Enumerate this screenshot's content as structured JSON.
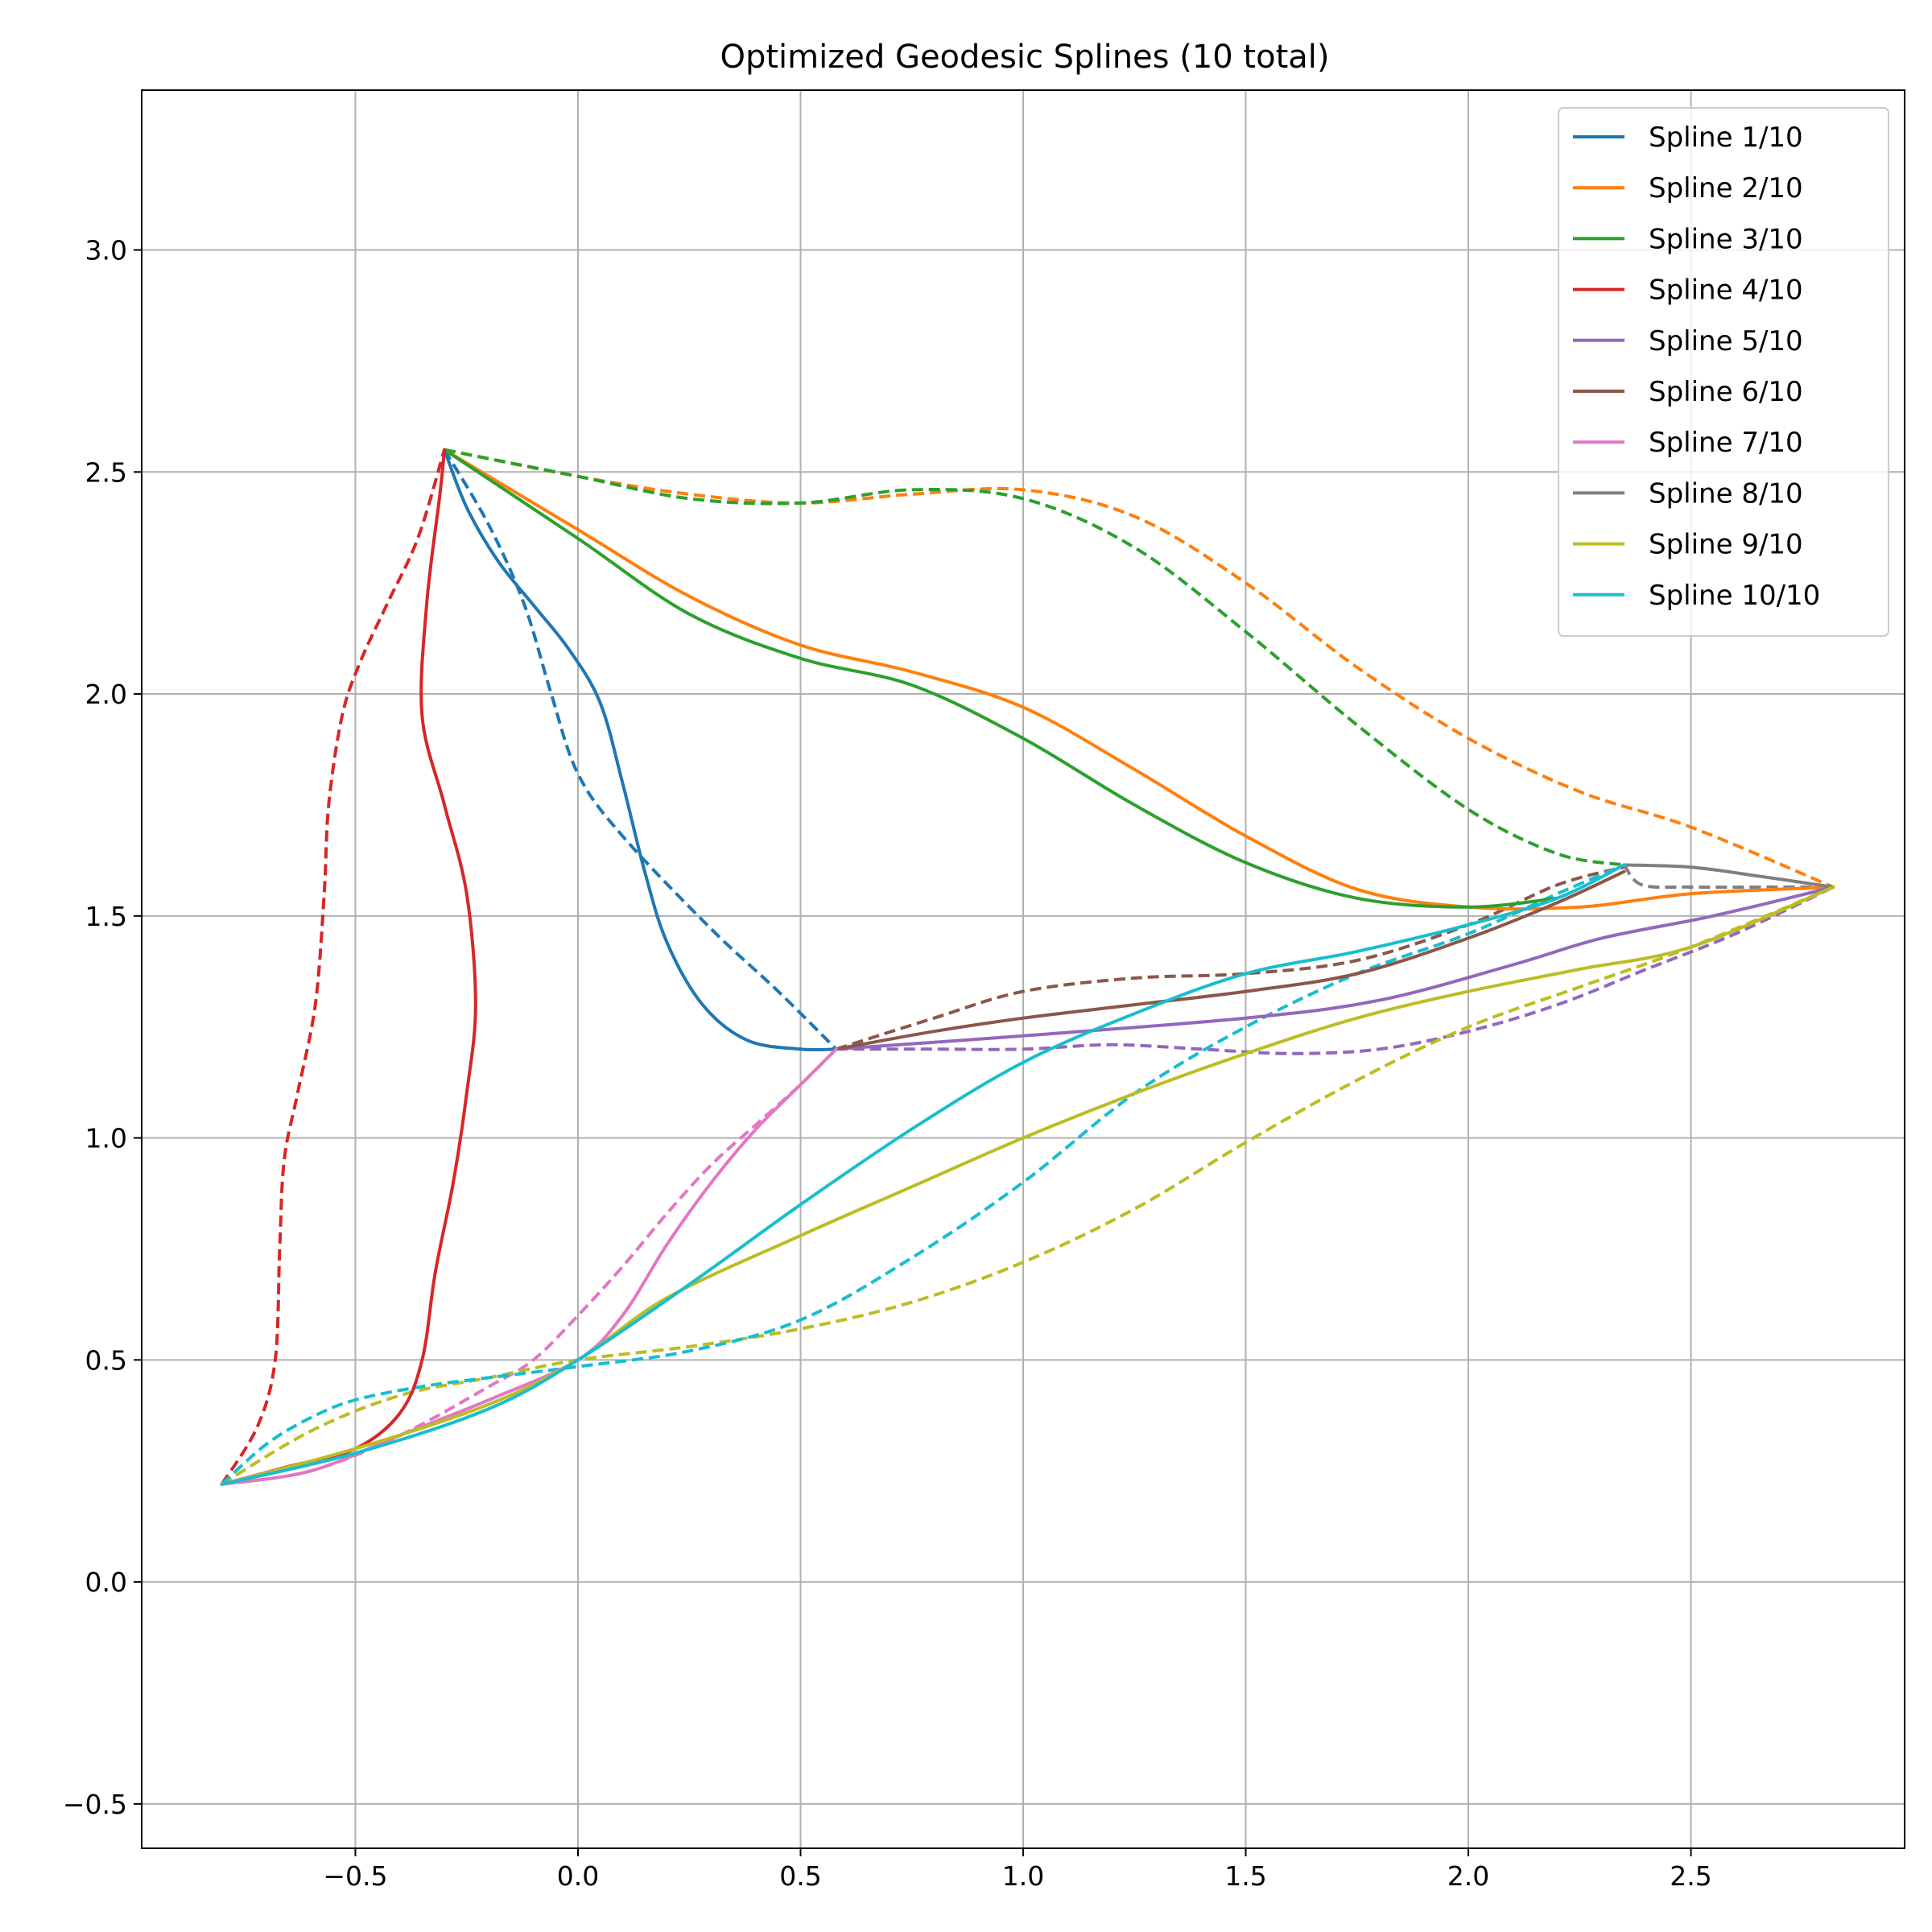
{
  "chart_data": {
    "type": "line",
    "title": "Optimized Geodesic Splines (10 total)",
    "xlabel": "",
    "ylabel": "",
    "xlim": [
      -0.98,
      2.98
    ],
    "ylim": [
      -0.6,
      3.36
    ],
    "xticks": [
      -0.5,
      0.0,
      0.5,
      1.0,
      1.5,
      2.0,
      2.5
    ],
    "xtick_labels": [
      "−0.5",
      "0.0",
      "0.5",
      "1.0",
      "1.5",
      "2.0",
      "2.5"
    ],
    "yticks": [
      -0.5,
      0.0,
      0.5,
      1.0,
      1.5,
      2.0,
      2.5,
      3.0
    ],
    "ytick_labels": [
      "−0.5",
      "0.0",
      "0.5",
      "1.0",
      "1.5",
      "2.0",
      "2.5",
      "3.0"
    ],
    "grid": true,
    "legend_position": "top-right",
    "series": [
      {
        "name": "Spline 1/10",
        "color": "#1f77b4",
        "solid": [
          [
            -0.3,
            2.55
          ],
          [
            -0.25,
            2.42
          ],
          [
            -0.18,
            2.3
          ],
          [
            -0.1,
            2.2
          ],
          [
            -0.02,
            2.1
          ],
          [
            0.05,
            1.98
          ],
          [
            0.1,
            1.8
          ],
          [
            0.15,
            1.6
          ],
          [
            0.2,
            1.44
          ],
          [
            0.28,
            1.3
          ],
          [
            0.38,
            1.22
          ],
          [
            0.5,
            1.2
          ],
          [
            0.58,
            1.2
          ]
        ],
        "dashed": [
          [
            -0.3,
            2.55
          ],
          [
            -0.2,
            2.38
          ],
          [
            -0.12,
            2.2
          ],
          [
            -0.06,
            2.0
          ],
          [
            0.0,
            1.82
          ],
          [
            0.1,
            1.68
          ],
          [
            0.3,
            1.47
          ],
          [
            0.45,
            1.33
          ],
          [
            0.58,
            1.2
          ]
        ]
      },
      {
        "name": "Spline 2/10",
        "color": "#ff7f0e",
        "solid": [
          [
            -0.3,
            2.55
          ],
          [
            0.0,
            2.37
          ],
          [
            0.25,
            2.22
          ],
          [
            0.5,
            2.11
          ],
          [
            0.75,
            2.05
          ],
          [
            1.0,
            1.97
          ],
          [
            1.25,
            1.83
          ],
          [
            1.5,
            1.68
          ],
          [
            1.75,
            1.56
          ],
          [
            2.0,
            1.52
          ],
          [
            2.25,
            1.52
          ],
          [
            2.5,
            1.55
          ],
          [
            2.82,
            1.565
          ]
        ],
        "dashed": [
          [
            -0.3,
            2.55
          ],
          [
            0.0,
            2.49
          ],
          [
            0.25,
            2.45
          ],
          [
            0.5,
            2.43
          ],
          [
            0.75,
            2.45
          ],
          [
            1.0,
            2.46
          ],
          [
            1.25,
            2.4
          ],
          [
            1.5,
            2.25
          ],
          [
            1.75,
            2.06
          ],
          [
            2.0,
            1.9
          ],
          [
            2.25,
            1.78
          ],
          [
            2.5,
            1.7
          ],
          [
            2.82,
            1.565
          ]
        ]
      },
      {
        "name": "Spline 3/10",
        "color": "#2ca02c",
        "solid": [
          [
            -0.3,
            2.55
          ],
          [
            0.0,
            2.35
          ],
          [
            0.25,
            2.18
          ],
          [
            0.5,
            2.08
          ],
          [
            0.75,
            2.02
          ],
          [
            1.0,
            1.9
          ],
          [
            1.25,
            1.75
          ],
          [
            1.5,
            1.62
          ],
          [
            1.75,
            1.54
          ],
          [
            2.0,
            1.52
          ],
          [
            2.2,
            1.54
          ]
        ],
        "dashed": [
          [
            -0.3,
            2.55
          ],
          [
            0.0,
            2.49
          ],
          [
            0.25,
            2.44
          ],
          [
            0.5,
            2.43
          ],
          [
            0.75,
            2.46
          ],
          [
            1.0,
            2.44
          ],
          [
            1.25,
            2.33
          ],
          [
            1.5,
            2.14
          ],
          [
            1.75,
            1.93
          ],
          [
            2.0,
            1.74
          ],
          [
            2.2,
            1.64
          ],
          [
            2.35,
            1.615
          ]
        ]
      },
      {
        "name": "Spline 4/10",
        "color": "#d62728",
        "solid": [
          [
            -0.8,
            0.22
          ],
          [
            -0.65,
            0.26
          ],
          [
            -0.5,
            0.3
          ],
          [
            -0.4,
            0.38
          ],
          [
            -0.35,
            0.5
          ],
          [
            -0.32,
            0.7
          ],
          [
            -0.28,
            0.9
          ],
          [
            -0.25,
            1.1
          ],
          [
            -0.23,
            1.3
          ],
          [
            -0.25,
            1.55
          ],
          [
            -0.3,
            1.75
          ],
          [
            -0.35,
            1.95
          ],
          [
            -0.34,
            2.2
          ],
          [
            -0.31,
            2.45
          ],
          [
            -0.3,
            2.55
          ]
        ],
        "dashed": [
          [
            -0.8,
            0.22
          ],
          [
            -0.72,
            0.35
          ],
          [
            -0.68,
            0.5
          ],
          [
            -0.67,
            0.75
          ],
          [
            -0.66,
            0.95
          ],
          [
            -0.63,
            1.1
          ],
          [
            -0.59,
            1.3
          ],
          [
            -0.57,
            1.55
          ],
          [
            -0.56,
            1.75
          ],
          [
            -0.53,
            1.95
          ],
          [
            -0.49,
            2.07
          ],
          [
            -0.43,
            2.2
          ],
          [
            -0.36,
            2.35
          ],
          [
            -0.3,
            2.55
          ]
        ]
      },
      {
        "name": "Spline 5/10",
        "color": "#9467bd",
        "solid": [
          [
            0.58,
            1.2
          ],
          [
            1.0,
            1.23
          ],
          [
            1.5,
            1.27
          ],
          [
            1.8,
            1.31
          ],
          [
            2.1,
            1.39
          ],
          [
            2.3,
            1.45
          ],
          [
            2.55,
            1.5
          ],
          [
            2.82,
            1.565
          ]
        ],
        "dashed": [
          [
            0.58,
            1.2
          ],
          [
            0.8,
            1.2
          ],
          [
            1.0,
            1.2
          ],
          [
            1.2,
            1.21
          ],
          [
            1.4,
            1.2
          ],
          [
            1.6,
            1.19
          ],
          [
            1.8,
            1.2
          ],
          [
            2.0,
            1.24
          ],
          [
            2.2,
            1.3
          ],
          [
            2.4,
            1.38
          ],
          [
            2.6,
            1.46
          ],
          [
            2.82,
            1.565
          ]
        ]
      },
      {
        "name": "Spline 6/10",
        "color": "#8c564b",
        "solid": [
          [
            0.58,
            1.2
          ],
          [
            0.8,
            1.24
          ],
          [
            1.0,
            1.27
          ],
          [
            1.25,
            1.3
          ],
          [
            1.5,
            1.33
          ],
          [
            1.75,
            1.37
          ],
          [
            2.0,
            1.45
          ],
          [
            2.2,
            1.53
          ],
          [
            2.35,
            1.6
          ]
        ],
        "dashed": [
          [
            0.58,
            1.2
          ],
          [
            0.8,
            1.27
          ],
          [
            1.0,
            1.33
          ],
          [
            1.25,
            1.36
          ],
          [
            1.5,
            1.37
          ],
          [
            1.75,
            1.4
          ],
          [
            2.0,
            1.48
          ],
          [
            2.2,
            1.57
          ],
          [
            2.35,
            1.61
          ]
        ]
      },
      {
        "name": "Spline 7/10",
        "color": "#e377c2",
        "solid": [
          [
            -0.8,
            0.22
          ],
          [
            -0.6,
            0.25
          ],
          [
            -0.4,
            0.33
          ],
          [
            -0.2,
            0.41
          ],
          [
            0.0,
            0.5
          ],
          [
            0.1,
            0.6
          ],
          [
            0.2,
            0.76
          ],
          [
            0.3,
            0.9
          ],
          [
            0.4,
            1.02
          ],
          [
            0.5,
            1.12
          ],
          [
            0.58,
            1.2
          ]
        ],
        "dashed": [
          [
            -0.8,
            0.22
          ],
          [
            -0.6,
            0.25
          ],
          [
            -0.4,
            0.33
          ],
          [
            -0.2,
            0.44
          ],
          [
            -0.1,
            0.5
          ],
          [
            0.0,
            0.6
          ],
          [
            0.1,
            0.71
          ],
          [
            0.2,
            0.83
          ],
          [
            0.3,
            0.94
          ],
          [
            0.4,
            1.03
          ],
          [
            0.5,
            1.12
          ],
          [
            0.58,
            1.2
          ]
        ]
      },
      {
        "name": "Spline 8/10",
        "color": "#7f7f7f",
        "solid": [
          [
            2.35,
            1.615
          ],
          [
            2.5,
            1.61
          ],
          [
            2.65,
            1.59
          ],
          [
            2.82,
            1.565
          ]
        ],
        "dashed": [
          [
            2.35,
            1.615
          ],
          [
            2.39,
            1.57
          ],
          [
            2.5,
            1.565
          ],
          [
            2.65,
            1.565
          ],
          [
            2.82,
            1.565
          ]
        ]
      },
      {
        "name": "Spline 9/10",
        "color": "#bcbd22",
        "solid": [
          [
            -0.8,
            0.22
          ],
          [
            -0.5,
            0.3
          ],
          [
            -0.2,
            0.4
          ],
          [
            0.0,
            0.5
          ],
          [
            0.2,
            0.64
          ],
          [
            0.5,
            0.78
          ],
          [
            0.75,
            0.89
          ],
          [
            1.0,
            1.0
          ],
          [
            1.25,
            1.1
          ],
          [
            1.5,
            1.19
          ],
          [
            1.75,
            1.27
          ],
          [
            2.0,
            1.33
          ],
          [
            2.25,
            1.38
          ],
          [
            2.5,
            1.43
          ],
          [
            2.82,
            1.565
          ]
        ],
        "dashed": [
          [
            -0.8,
            0.22
          ],
          [
            -0.6,
            0.34
          ],
          [
            -0.4,
            0.42
          ],
          [
            -0.2,
            0.46
          ],
          [
            0.0,
            0.5
          ],
          [
            0.25,
            0.53
          ],
          [
            0.5,
            0.57
          ],
          [
            0.75,
            0.63
          ],
          [
            1.0,
            0.72
          ],
          [
            1.25,
            0.84
          ],
          [
            1.5,
            0.99
          ],
          [
            1.75,
            1.13
          ],
          [
            2.0,
            1.25
          ],
          [
            2.25,
            1.34
          ],
          [
            2.5,
            1.43
          ],
          [
            2.82,
            1.565
          ]
        ]
      },
      {
        "name": "Spline 10/10",
        "color": "#17becf",
        "solid": [
          [
            -0.8,
            0.22
          ],
          [
            -0.5,
            0.29
          ],
          [
            -0.2,
            0.39
          ],
          [
            0.0,
            0.5
          ],
          [
            0.25,
            0.67
          ],
          [
            0.5,
            0.85
          ],
          [
            0.75,
            1.02
          ],
          [
            1.0,
            1.17
          ],
          [
            1.25,
            1.28
          ],
          [
            1.5,
            1.37
          ],
          [
            1.75,
            1.42
          ],
          [
            2.0,
            1.48
          ],
          [
            2.2,
            1.54
          ],
          [
            2.35,
            1.615
          ]
        ],
        "dashed": [
          [
            -0.8,
            0.22
          ],
          [
            -0.7,
            0.31
          ],
          [
            -0.6,
            0.37
          ],
          [
            -0.5,
            0.41
          ],
          [
            -0.35,
            0.44
          ],
          [
            -0.2,
            0.46
          ],
          [
            0.0,
            0.485
          ],
          [
            0.25,
            0.52
          ],
          [
            0.5,
            0.59
          ],
          [
            0.75,
            0.73
          ],
          [
            1.0,
            0.9
          ],
          [
            1.25,
            1.1
          ],
          [
            1.5,
            1.25
          ],
          [
            1.75,
            1.37
          ],
          [
            2.0,
            1.46
          ],
          [
            2.2,
            1.55
          ],
          [
            2.35,
            1.615
          ]
        ]
      }
    ]
  }
}
